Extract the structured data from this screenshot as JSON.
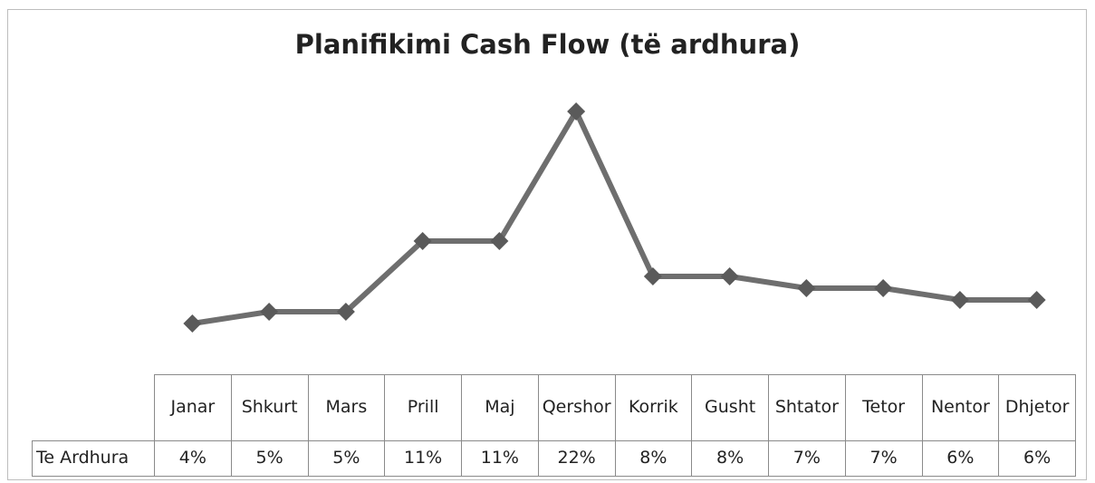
{
  "chart_data": {
    "type": "line",
    "title": "Planifikimi Cash Flow (të ardhura)",
    "categories": [
      "Janar",
      "Shkurt",
      "Mars",
      "Prill",
      "Maj",
      "Qershor",
      "Korrik",
      "Gusht",
      "Shtator",
      "Tetor",
      "Nentor",
      "Dhjetor"
    ],
    "series": [
      {
        "name": "Te Ardhura",
        "color": "#6e6e6e",
        "marker_color": "#5a5a5a",
        "values": [
          4,
          5,
          5,
          11,
          11,
          22,
          8,
          8,
          7,
          7,
          6,
          6
        ],
        "value_labels": [
          "4%",
          "5%",
          "5%",
          "11%",
          "11%",
          "22%",
          "8%",
          "8%",
          "7%",
          "7%",
          "6%",
          "6%"
        ]
      }
    ],
    "data_table": true
  }
}
